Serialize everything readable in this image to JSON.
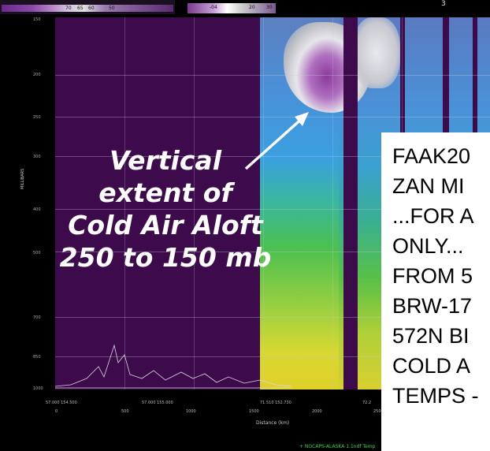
{
  "colorbar": {
    "ticks": [
      "70",
      "65",
      "60",
      "50"
    ]
  },
  "colorbar2": {
    "ticks": [
      "-04",
      "20",
      "30"
    ]
  },
  "corner_text": "3     ",
  "plot": {
    "y_axis_title": "MILLIBARS",
    "y_tick_labels": [
      "150",
      "200",
      "250",
      "300",
      "400",
      "500",
      "700",
      "850",
      "1000"
    ],
    "x_tick_labels": [
      "0",
      "500",
      "1000",
      "1500",
      "2000",
      "2500"
    ],
    "x_positions_labels": [
      "57.000 154.500",
      "57.000 155.000",
      "71.510 152.730",
      "72.2"
    ],
    "x_axis_title": "Distance (km)"
  },
  "annotation": {
    "line1": "Vertical",
    "line2": "extent of",
    "line3": "Cold Air Aloft",
    "line4": "250 to 150 mb"
  },
  "textbox": {
    "lines": [
      "FAAK20",
      "ZAN MI",
      "...FOR A",
      "ONLY...",
      "FROM 5",
      "BRW-17",
      "572N BI",
      "COLD A",
      "TEMPS -"
    ]
  },
  "footer": "+ NOCAPS-ALASKA 1.1ndf  Temp"
}
